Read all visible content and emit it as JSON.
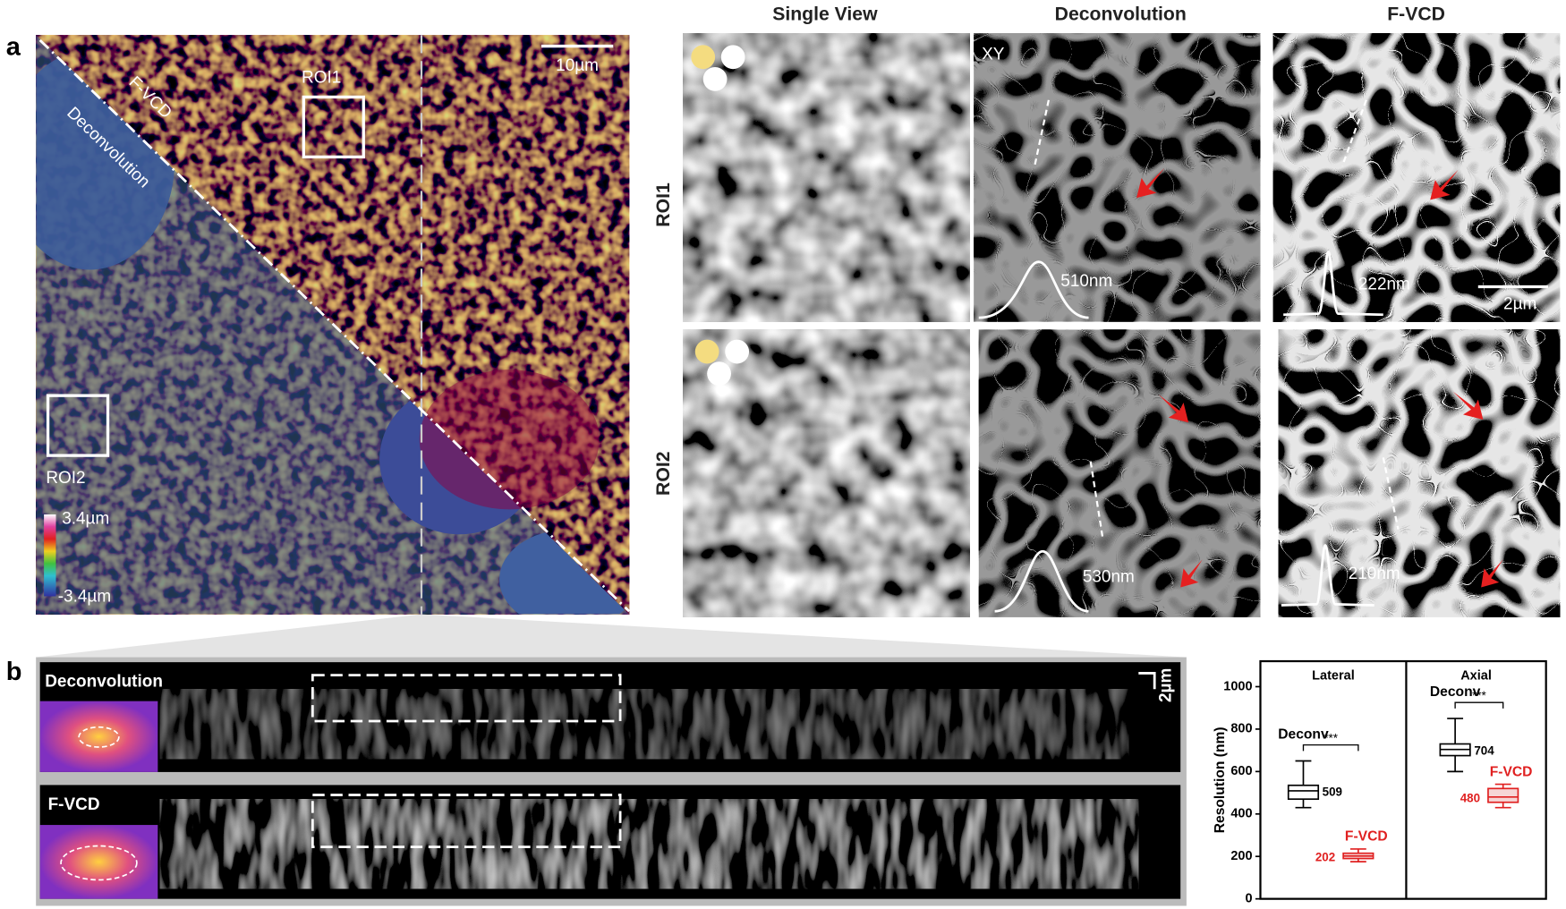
{
  "panel_a": {
    "label": "a",
    "column_headers": [
      "Single View",
      "Deconvolution",
      "F-VCD"
    ],
    "row_labels": [
      "ROI1",
      "ROI2"
    ],
    "overview": {
      "diagonal_labels": [
        "F-VCD",
        "Deconvolution"
      ],
      "roi_labels": [
        "ROI1",
        "ROI2"
      ],
      "scale_bar": "10µm",
      "colorbar_max": "3.4µm",
      "colorbar_min": "-3.4µm"
    },
    "view_label": "XY",
    "fwhm": {
      "roi1": [
        "510nm",
        "222nm"
      ],
      "roi2": [
        "530nm",
        "210nm"
      ]
    },
    "scale_bar": "2µm"
  },
  "panel_b": {
    "label": "b",
    "strip_labels": [
      "Deconvolution",
      "F-VCD"
    ],
    "scale_bar": "2µm"
  },
  "chart_data": {
    "type": "box",
    "y_label": "Resolution (nm)",
    "groups": [
      "Lateral",
      "Axial"
    ],
    "significance": [
      "***",
      "***"
    ],
    "ylim": [
      0,
      1120
    ],
    "yticks": [
      0,
      200,
      400,
      600,
      800,
      1000
    ],
    "series": [
      {
        "name": "Deconv",
        "color": "#000000",
        "fill": "#ffffff",
        "whisker_low": [
          430,
          600
        ],
        "q1": [
          470,
          675
        ],
        "median": [
          509,
          704
        ],
        "q3": [
          535,
          730
        ],
        "whisker_high": [
          650,
          850
        ]
      },
      {
        "name": "F-VCD",
        "color": "#e02020",
        "fill": "#f6d6d6",
        "whisker_low": [
          175,
          430
        ],
        "q1": [
          190,
          455
        ],
        "median": [
          202,
          480
        ],
        "q3": [
          215,
          520
        ],
        "whisker_high": [
          235,
          540
        ]
      }
    ]
  }
}
